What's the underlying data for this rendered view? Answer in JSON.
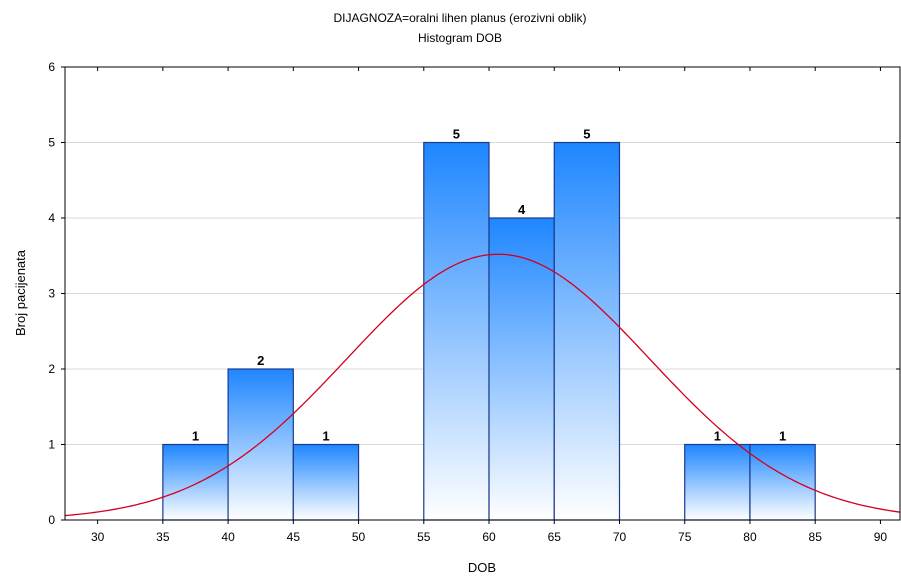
{
  "chart_data": {
    "type": "bar",
    "title": "DIJAGNOZA=oralni lihen planus (erozivni oblik)",
    "subtitle": "Histogram DOB",
    "xlabel": "DOB",
    "ylabel": "Broj pacijenata",
    "xlim": [
      27.5,
      91.5
    ],
    "ylim": [
      0,
      6
    ],
    "x_ticks": [
      30,
      35,
      40,
      45,
      50,
      55,
      60,
      65,
      70,
      75,
      80,
      85,
      90
    ],
    "y_ticks": [
      0,
      1,
      2,
      3,
      4,
      5,
      6
    ],
    "grid": true,
    "bins": [
      {
        "start": 35,
        "end": 40,
        "value": 1,
        "label": "1"
      },
      {
        "start": 40,
        "end": 45,
        "value": 2,
        "label": "2"
      },
      {
        "start": 45,
        "end": 50,
        "value": 1,
        "label": "1"
      },
      {
        "start": 55,
        "end": 60,
        "value": 5,
        "label": "5"
      },
      {
        "start": 60,
        "end": 65,
        "value": 4,
        "label": "4"
      },
      {
        "start": 65,
        "end": 70,
        "value": 5,
        "label": "5"
      },
      {
        "start": 75,
        "end": 80,
        "value": 1,
        "label": "1"
      },
      {
        "start": 80,
        "end": 85,
        "value": 1,
        "label": "1"
      }
    ],
    "normal_curve": {
      "mean": 60.7,
      "sd": 11.6,
      "peak": 3.52
    },
    "colors": {
      "bar_top": "#1e86ff",
      "bar_bottom": "#ffffff",
      "bar_edge": "#1b3a8c",
      "curve": "#d4001c",
      "grid": "#d9d9d9"
    }
  }
}
